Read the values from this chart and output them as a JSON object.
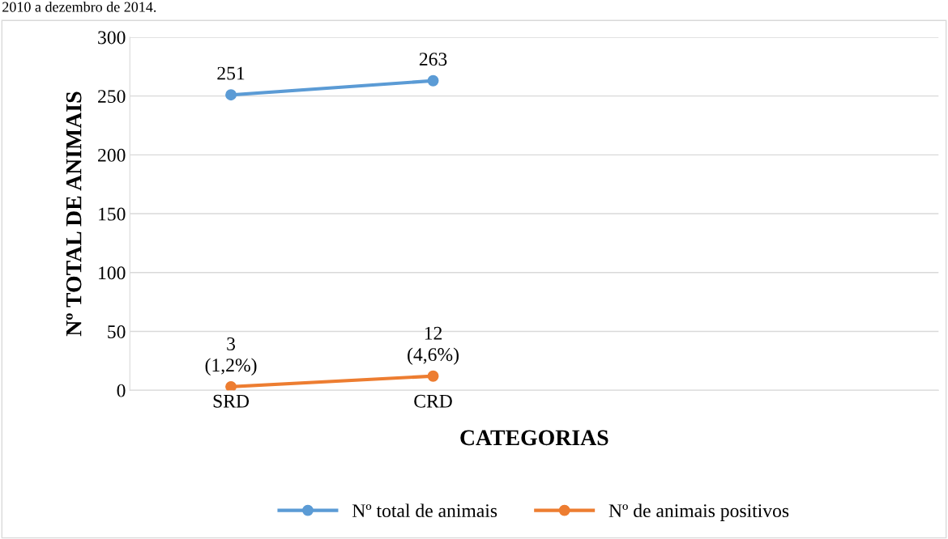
{
  "chart_data": {
    "type": "line",
    "annotations": [
      "2010 a dezembro de 2014."
    ],
    "xlabel": "CATEGORIAS",
    "ylabel": "Nº TOTAL DE ANIMAIS",
    "categories": [
      "SRD",
      "CRD",
      null,
      null
    ],
    "series": [
      {
        "name": "Nº total de animais",
        "color": "#5b9bd5",
        "values": [
          251,
          263,
          null,
          null
        ],
        "value_labels": [
          "251",
          "263",
          null,
          null
        ]
      },
      {
        "name": "Nº de animais positivos",
        "color": "#ed7d31",
        "values": [
          3,
          12,
          null,
          null
        ],
        "value_labels": [
          "3\n(1,2%)",
          "12\n(4,6%)",
          null,
          null
        ]
      }
    ],
    "ylim": [
      0,
      300
    ],
    "yticks": [
      0,
      50,
      100,
      150,
      200,
      250,
      300
    ],
    "grid": "y",
    "legend": "bottom",
    "marker": "circle",
    "line_style": "solid"
  }
}
